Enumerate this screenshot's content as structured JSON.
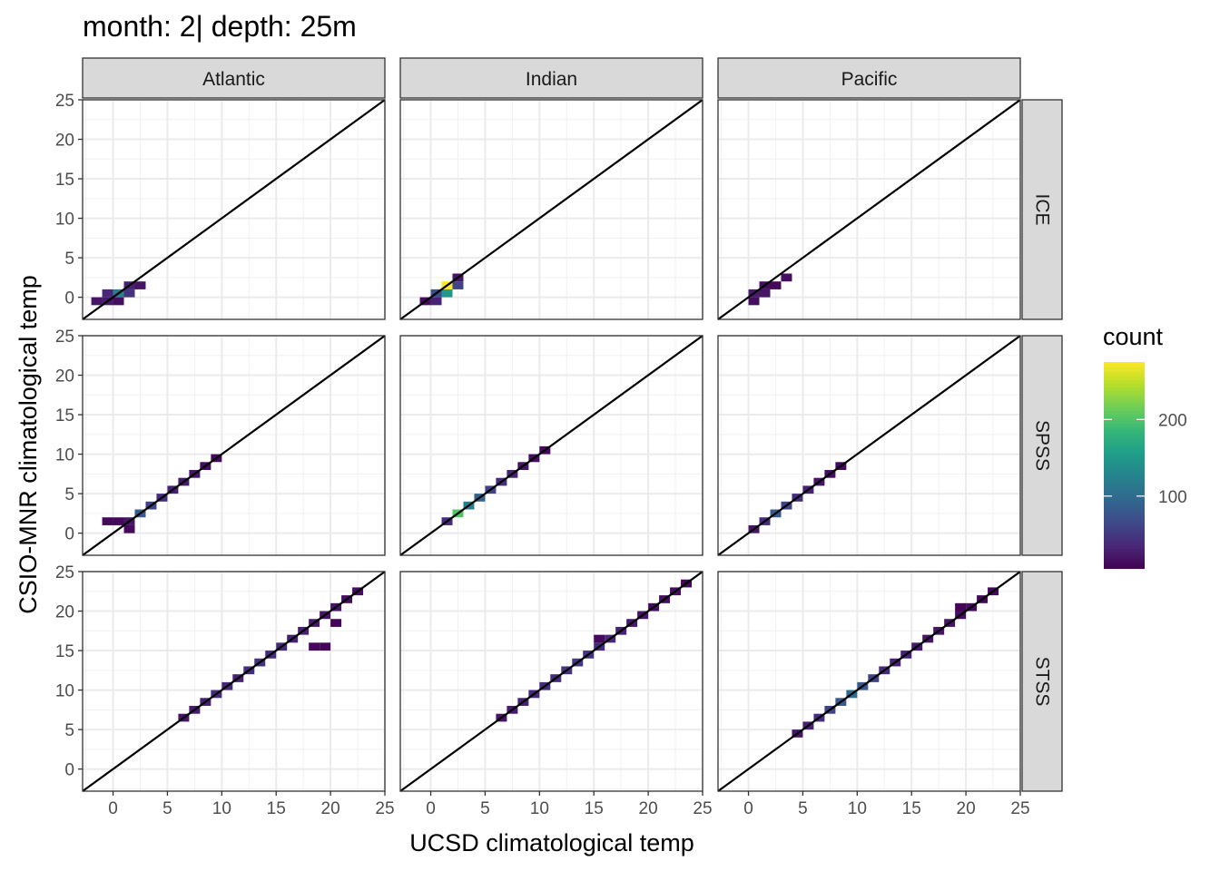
{
  "title": "month: 2| depth: 25m",
  "chart_data": {
    "type": "heatmap",
    "title": "month: 2| depth: 25m",
    "xlabel": "UCSD climatological temp",
    "ylabel": "CSIO-MNR climatological temp",
    "xlim": [
      -2.8,
      25
    ],
    "ylim": [
      -2.8,
      25
    ],
    "x_ticks": [
      0,
      5,
      10,
      15,
      20,
      25
    ],
    "y_ticks": [
      0,
      5,
      10,
      15,
      20,
      25
    ],
    "x_tick_labels": [
      "0",
      "5",
      "10",
      "15",
      "20",
      "25"
    ],
    "y_tick_labels": [
      "0",
      "5",
      "10",
      "15",
      "20",
      "25"
    ],
    "bin_width": 1,
    "reference_line": "y = x",
    "grid": true,
    "columns": [
      "Atlantic",
      "Indian",
      "Pacific"
    ],
    "rows": [
      "ICE",
      "SPSS",
      "STSS"
    ],
    "legend": {
      "title": "count",
      "position": "right",
      "range": [
        5,
        275
      ],
      "ticks": [
        100,
        200
      ],
      "tick_labels": [
        "100",
        "200"
      ],
      "colormap": "viridis"
    },
    "panels": [
      {
        "col": "Atlantic",
        "row": "ICE",
        "bins": [
          [
            -1.5,
            -0.5,
            20
          ],
          [
            -0.5,
            -0.5,
            25
          ],
          [
            0.5,
            -0.5,
            15
          ],
          [
            -0.5,
            0.5,
            35
          ],
          [
            0.5,
            0.5,
            120
          ],
          [
            1.5,
            0.5,
            45
          ],
          [
            1.5,
            1.5,
            30
          ],
          [
            2.5,
            1.5,
            20
          ]
        ]
      },
      {
        "col": "Indian",
        "row": "ICE",
        "bins": [
          [
            -0.5,
            -0.5,
            15
          ],
          [
            0.5,
            -0.5,
            30
          ],
          [
            0.5,
            0.5,
            70
          ],
          [
            1.5,
            0.5,
            150
          ],
          [
            1.5,
            1.5,
            275
          ],
          [
            2.5,
            1.5,
            60
          ],
          [
            2.5,
            2.5,
            20
          ]
        ]
      },
      {
        "col": "Pacific",
        "row": "ICE",
        "bins": [
          [
            0.5,
            -0.5,
            15
          ],
          [
            0.5,
            0.5,
            25
          ],
          [
            1.5,
            0.5,
            20
          ],
          [
            1.5,
            1.5,
            15
          ],
          [
            2.5,
            1.5,
            10
          ],
          [
            3.5,
            2.5,
            15
          ]
        ]
      },
      {
        "col": "Atlantic",
        "row": "SPSS",
        "bins": [
          [
            -0.5,
            1.5,
            10
          ],
          [
            0.5,
            1.5,
            10
          ],
          [
            1.5,
            1.5,
            20
          ],
          [
            1.5,
            0.5,
            12
          ],
          [
            2.5,
            2.5,
            80
          ],
          [
            3.5,
            3.5,
            60
          ],
          [
            4.5,
            4.5,
            40
          ],
          [
            5.5,
            5.5,
            30
          ],
          [
            6.5,
            6.5,
            25
          ],
          [
            7.5,
            7.5,
            20
          ],
          [
            8.5,
            8.5,
            15
          ],
          [
            9.5,
            9.5,
            10
          ]
        ]
      },
      {
        "col": "Indian",
        "row": "SPSS",
        "bins": [
          [
            1.5,
            1.5,
            40
          ],
          [
            2.5,
            2.5,
            200
          ],
          [
            3.5,
            3.5,
            120
          ],
          [
            4.5,
            4.5,
            90
          ],
          [
            5.5,
            5.5,
            60
          ],
          [
            6.5,
            6.5,
            40
          ],
          [
            7.5,
            7.5,
            30
          ],
          [
            8.5,
            8.5,
            20
          ],
          [
            9.5,
            9.5,
            15
          ],
          [
            10.5,
            10.5,
            10
          ]
        ]
      },
      {
        "col": "Pacific",
        "row": "SPSS",
        "bins": [
          [
            0.5,
            0.5,
            20
          ],
          [
            1.5,
            1.5,
            40
          ],
          [
            2.5,
            2.5,
            80
          ],
          [
            3.5,
            3.5,
            60
          ],
          [
            4.5,
            4.5,
            40
          ],
          [
            5.5,
            5.5,
            30
          ],
          [
            6.5,
            6.5,
            20
          ],
          [
            7.5,
            7.5,
            15
          ],
          [
            8.5,
            8.5,
            10
          ]
        ]
      },
      {
        "col": "Atlantic",
        "row": "STSS",
        "bins": [
          [
            6.5,
            6.5,
            20
          ],
          [
            7.5,
            7.5,
            25
          ],
          [
            8.5,
            8.5,
            30
          ],
          [
            9.5,
            9.5,
            40
          ],
          [
            10.5,
            10.5,
            35
          ],
          [
            11.5,
            11.5,
            30
          ],
          [
            12.5,
            12.5,
            40
          ],
          [
            13.5,
            13.5,
            45
          ],
          [
            14.5,
            14.5,
            40
          ],
          [
            15.5,
            15.5,
            35
          ],
          [
            16.5,
            16.5,
            30
          ],
          [
            17.5,
            17.5,
            30
          ],
          [
            18.5,
            18.5,
            25
          ],
          [
            19.5,
            19.5,
            20
          ],
          [
            20.5,
            20.5,
            20
          ],
          [
            21.5,
            21.5,
            15
          ],
          [
            22.5,
            22.5,
            15
          ],
          [
            18.5,
            15.5,
            10
          ],
          [
            19.5,
            15.5,
            8
          ],
          [
            20.5,
            18.5,
            8
          ]
        ]
      },
      {
        "col": "Indian",
        "row": "STSS",
        "bins": [
          [
            6.5,
            6.5,
            20
          ],
          [
            7.5,
            7.5,
            25
          ],
          [
            8.5,
            8.5,
            30
          ],
          [
            9.5,
            9.5,
            35
          ],
          [
            10.5,
            10.5,
            40
          ],
          [
            11.5,
            11.5,
            40
          ],
          [
            12.5,
            12.5,
            45
          ],
          [
            13.5,
            13.5,
            50
          ],
          [
            14.5,
            14.5,
            45
          ],
          [
            15.5,
            15.5,
            40
          ],
          [
            16.5,
            16.5,
            35
          ],
          [
            17.5,
            17.5,
            30
          ],
          [
            18.5,
            18.5,
            25
          ],
          [
            19.5,
            19.5,
            20
          ],
          [
            20.5,
            20.5,
            15
          ],
          [
            21.5,
            21.5,
            15
          ],
          [
            22.5,
            22.5,
            15
          ],
          [
            23.5,
            23.5,
            10
          ],
          [
            15.5,
            16.5,
            10
          ]
        ]
      },
      {
        "col": "Pacific",
        "row": "STSS",
        "bins": [
          [
            4.5,
            4.5,
            20
          ],
          [
            5.5,
            5.5,
            30
          ],
          [
            6.5,
            6.5,
            40
          ],
          [
            7.5,
            7.5,
            60
          ],
          [
            8.5,
            8.5,
            80
          ],
          [
            9.5,
            9.5,
            100
          ],
          [
            10.5,
            10.5,
            80
          ],
          [
            11.5,
            11.5,
            60
          ],
          [
            12.5,
            12.5,
            40
          ],
          [
            13.5,
            13.5,
            30
          ],
          [
            14.5,
            14.5,
            30
          ],
          [
            15.5,
            15.5,
            25
          ],
          [
            16.5,
            16.5,
            20
          ],
          [
            17.5,
            17.5,
            20
          ],
          [
            18.5,
            18.5,
            20
          ],
          [
            19.5,
            19.5,
            15
          ],
          [
            20.5,
            20.5,
            15
          ],
          [
            21.5,
            21.5,
            10
          ],
          [
            22.5,
            22.5,
            10
          ],
          [
            19.5,
            20.5,
            8
          ]
        ]
      }
    ]
  }
}
